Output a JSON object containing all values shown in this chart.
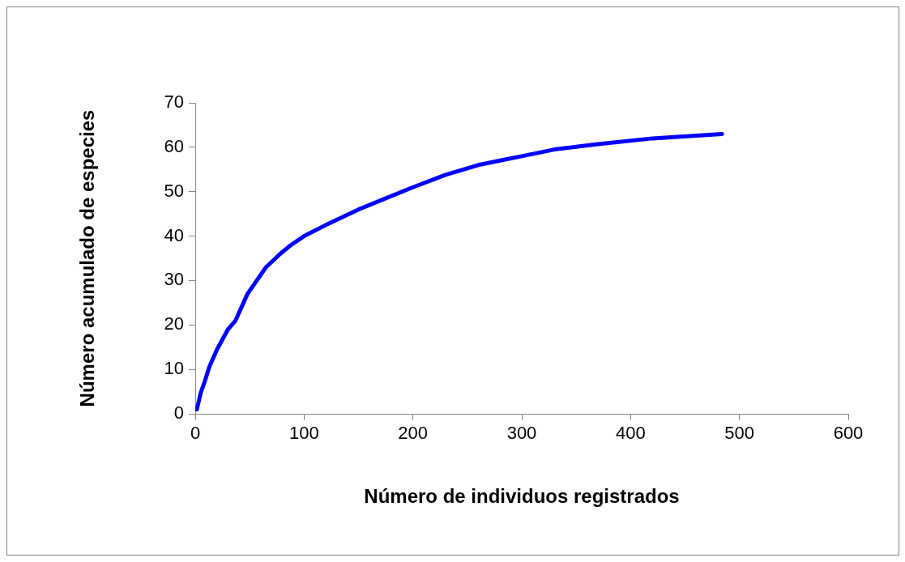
{
  "chart_data": {
    "type": "line",
    "xlabel": "Número de individuos registrados",
    "ylabel": "Número acumulado de especies",
    "series": [
      {
        "color": "#0000ff",
        "x": [
          1.5,
          5,
          9,
          13,
          20,
          30,
          37,
          48,
          65,
          78,
          88,
          100,
          120,
          150,
          170,
          200,
          230,
          260,
          280,
          300,
          330,
          370,
          420,
          484
        ],
        "values": [
          1,
          4.7,
          7.5,
          10.6,
          14.5,
          19,
          21,
          27,
          33,
          36,
          38,
          40,
          42.5,
          46,
          48,
          51,
          53.8,
          56,
          57,
          58,
          59.5,
          60.7,
          62,
          63
        ]
      }
    ],
    "xlim": [
      0,
      600
    ],
    "xticks": [
      0,
      100,
      200,
      300,
      400,
      500,
      600
    ],
    "ylim": [
      0,
      70
    ],
    "yticks": [
      0,
      10,
      20,
      30,
      40,
      50,
      60,
      70
    ],
    "grid": false,
    "legend": false,
    "marker": "none",
    "line_style": "solid"
  }
}
